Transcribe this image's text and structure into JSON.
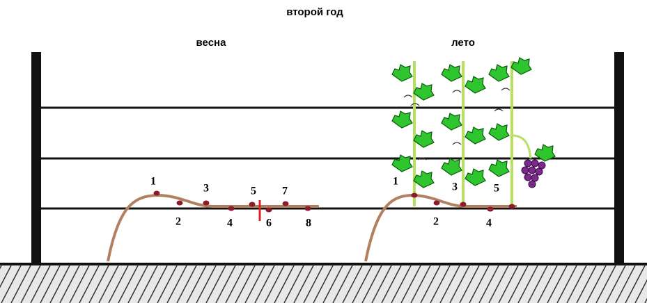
{
  "title": "второй год",
  "spring": {
    "label": "весна",
    "buds": [
      "1",
      "2",
      "3",
      "4",
      "5",
      "6",
      "7",
      "8"
    ]
  },
  "summer": {
    "label": "лето",
    "buds": [
      "1",
      "2",
      "3",
      "4",
      "5"
    ]
  }
}
